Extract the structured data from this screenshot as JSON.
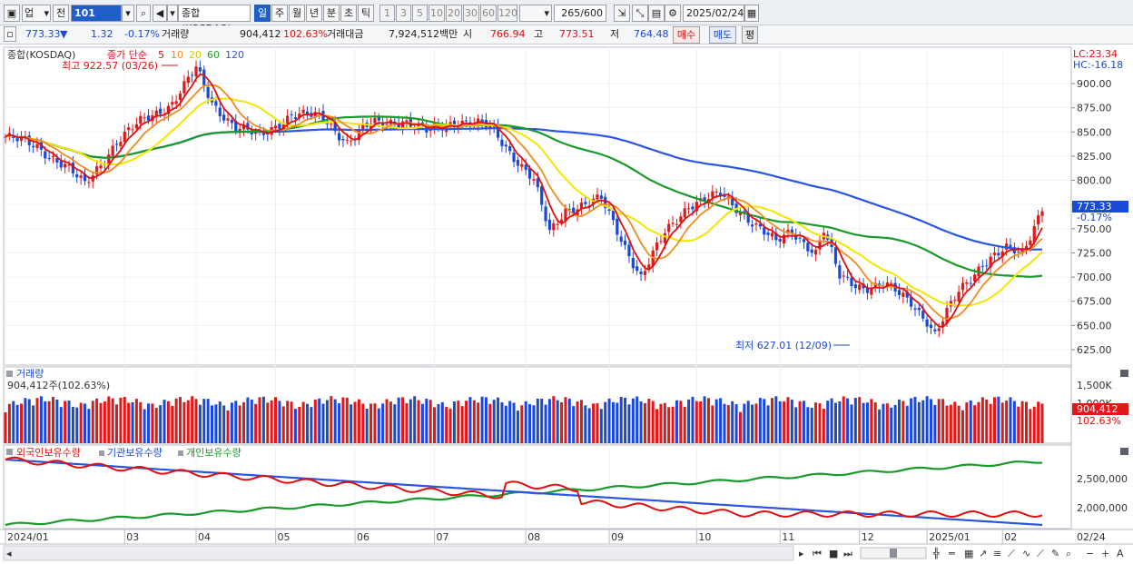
{
  "toolbar": {
    "market_type": "업",
    "prev_label": "전",
    "code": "101",
    "name": "종합(KOSDAQ)",
    "periods": [
      "일",
      "주",
      "월",
      "년",
      "분",
      "초",
      "틱"
    ],
    "active_period": "일",
    "intervals": [
      "1",
      "3",
      "5",
      "10",
      "20",
      "30",
      "60",
      "120"
    ],
    "count_display": "265/600",
    "date": "2025/02/24"
  },
  "quote": {
    "price": "773.33",
    "direction": "▼",
    "change": "1.32",
    "change_pct": "-0.17%",
    "volume_label": "거래량",
    "volume": "904,412",
    "volume_ratio": "102.63%",
    "amount_label": "거래대금",
    "amount": "7,924,512백만",
    "open_label": "시",
    "open": "766.94",
    "high_label": "고",
    "high": "773.51",
    "low_label": "저",
    "low": "764.48",
    "buy_label": "매수",
    "sell_label": "매도",
    "eval_label": "평"
  },
  "price_panel": {
    "title": "종합(KOSDAQ)",
    "ma_label": "종가 단순",
    "ma_periods": [
      "5",
      "10",
      "20",
      "60",
      "120"
    ],
    "high_annotation": "최고 922.57 (03/26)",
    "low_annotation": "최저 627.01 (12/09)",
    "lc_label": "LC:23.34",
    "hc_label": "HC:-16.18",
    "last_price": "773.33",
    "last_change_pct": "-0.17%",
    "y_ticks": [
      "900.00",
      "875.00",
      "850.00",
      "825.00",
      "800.00",
      "775.00",
      "750.00",
      "725.00",
      "700.00",
      "675.00",
      "650.00",
      "625.00"
    ]
  },
  "volume_panel": {
    "title": "거래량",
    "value_label": "904,412주(102.63%)",
    "y_ticks": [
      "1,500K",
      "1,000K"
    ],
    "last_value": "904,412",
    "last_ratio": "102.63%"
  },
  "holdings_panel": {
    "series_labels": [
      "외국인보유수량",
      "기관보유수량",
      "개인보유수량"
    ],
    "y_ticks": [
      "2,500,000",
      "2,000,000"
    ]
  },
  "x_axis": [
    "2024/01",
    "03",
    "04",
    "05",
    "06",
    "07",
    "08",
    "09",
    "10",
    "11",
    "12",
    "2025/01",
    "02"
  ],
  "x_axis_right": "02/24",
  "colors": {
    "up": "#e01818",
    "down": "#1a49d6",
    "ma5": "#e01010",
    "ma10": "#f08c1e",
    "ma20": "#f3e600",
    "ma60": "#1a9a2a",
    "ma120": "#2a55e0"
  },
  "icons": [
    "window-icon",
    "dropdown-icon",
    "search-icon",
    "speaker-icon",
    "chart-tools-icon",
    "save-icon",
    "settings-icon",
    "calendar-icon"
  ]
}
